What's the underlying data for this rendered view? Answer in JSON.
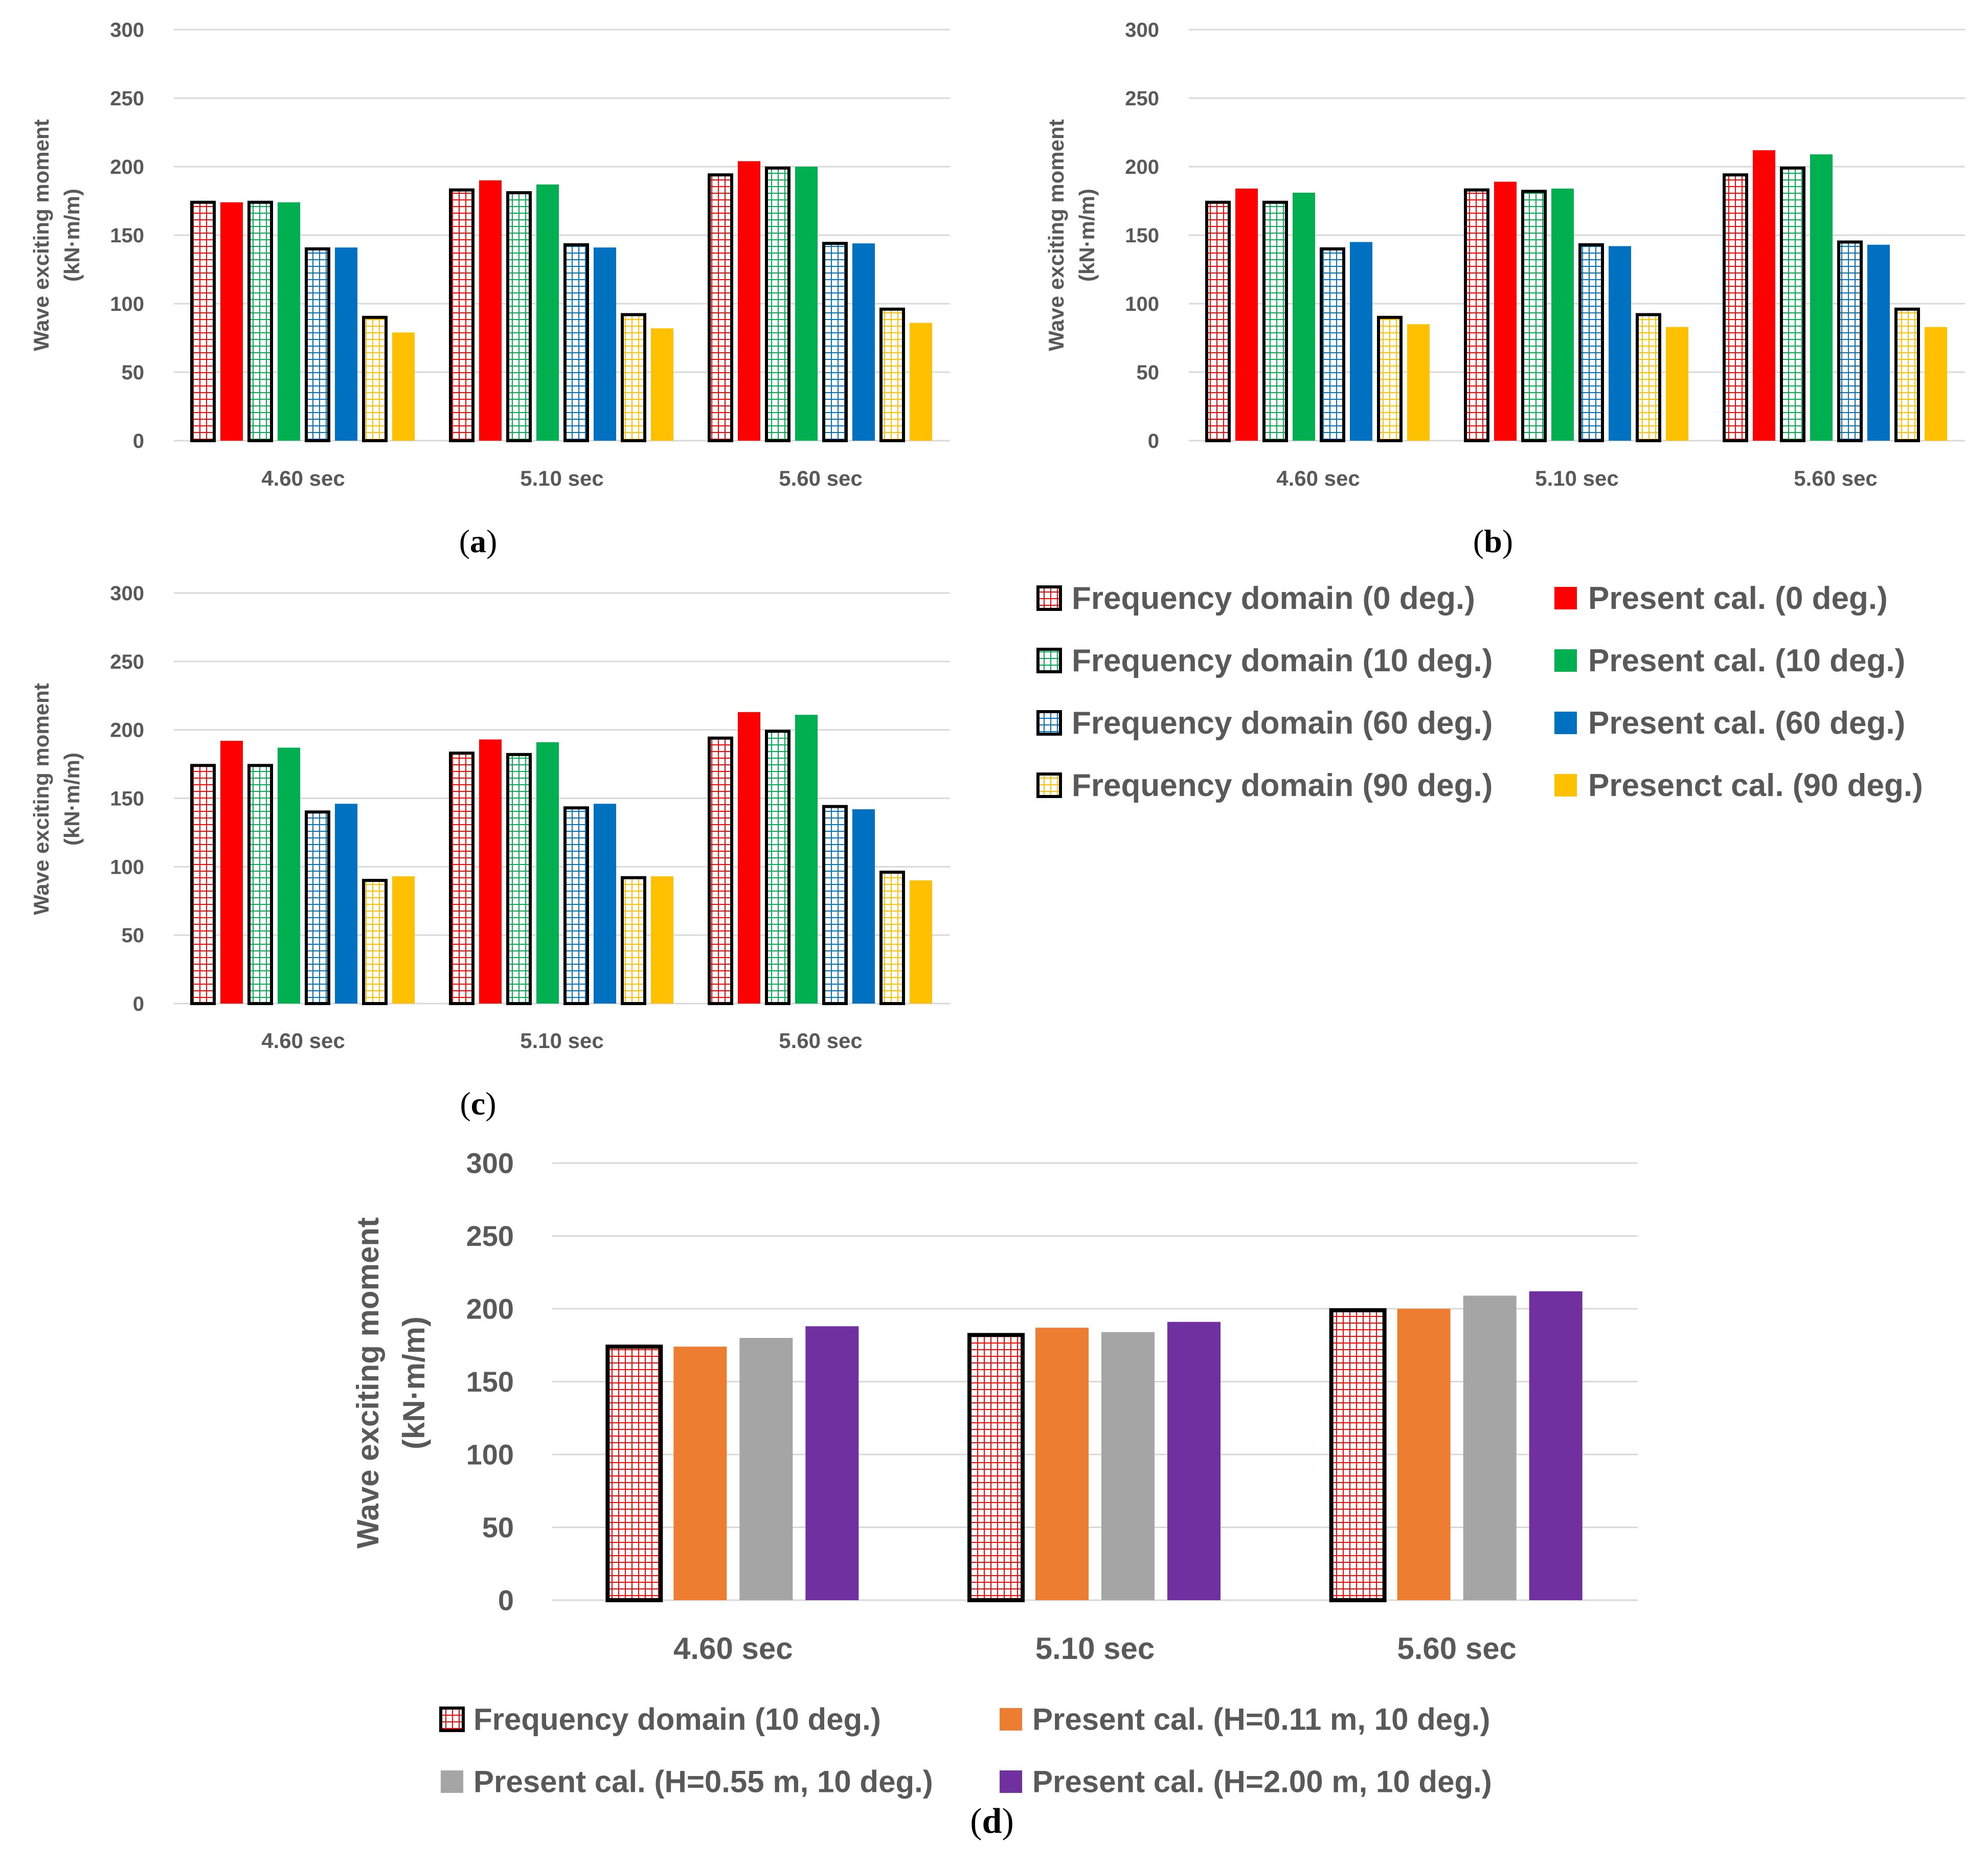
{
  "legend_main": {
    "items": [
      {
        "label": "Frequency domain (0 deg.)",
        "key": "fd0"
      },
      {
        "label": "Present cal. (0 deg.)",
        "key": "pc0"
      },
      {
        "label": "Frequency domain (10 deg.)",
        "key": "fd10"
      },
      {
        "label": "Present cal. (10 deg.)",
        "key": "pc10"
      },
      {
        "label": "Frequency domain (60 deg.)",
        "key": "fd60"
      },
      {
        "label": "Present cal. (60 deg.)",
        "key": "pc60"
      },
      {
        "label": "Frequency domain (90 deg.)",
        "key": "fd90"
      },
      {
        "label": "Presenct cal. (90 deg.)",
        "key": "pc90"
      }
    ]
  },
  "legend_d": {
    "items": [
      {
        "label": "Frequency domain (10 deg.)",
        "key": "fdd"
      },
      {
        "label": "Present cal. (H=0.11 m, 10 deg.)",
        "key": "h011"
      },
      {
        "label": "Present cal. (H=0.55 m, 10 deg.)",
        "key": "h055"
      },
      {
        "label": "Present cal. (H=2.00 m, 10 deg.)",
        "key": "h200"
      }
    ]
  },
  "colors": {
    "fd0": "#ff0000",
    "pc0": "#ff0000",
    "fd10": "#00b050",
    "pc10": "#00b050",
    "fd60": "#0070c0",
    "pc60": "#0070c0",
    "fd90": "#ffc000",
    "pc90": "#ffc000",
    "fdd": "#ff0000",
    "h011": "#ed7d31",
    "h055": "#a5a5a5",
    "h200": "#7030a0"
  },
  "chart_data": [
    {
      "panel": "a",
      "type": "bar",
      "panel_label": "(a)",
      "ylabel_line1": "Wave exciting moment",
      "ylabel_line2": "(kN·m/m)",
      "ylim": [
        0,
        300
      ],
      "yticks": [
        "0",
        "50",
        "100",
        "150",
        "200",
        "250",
        "300"
      ],
      "categories": [
        "4.60 sec",
        "5.10 sec",
        "5.60 sec"
      ],
      "series": [
        {
          "name": "Frequency domain (0 deg.)",
          "key": "fd0",
          "values": [
            174,
            183,
            194
          ]
        },
        {
          "name": "Present cal. (0 deg.)",
          "key": "pc0",
          "values": [
            174,
            190,
            204
          ]
        },
        {
          "name": "Frequency domain (10 deg.)",
          "key": "fd10",
          "values": [
            174,
            181,
            199
          ]
        },
        {
          "name": "Present cal. (10 deg.)",
          "key": "pc10",
          "values": [
            174,
            187,
            200
          ]
        },
        {
          "name": "Frequency domain (60 deg.)",
          "key": "fd60",
          "values": [
            140,
            143,
            144
          ]
        },
        {
          "name": "Present cal. (60 deg.)",
          "key": "pc60",
          "values": [
            141,
            141,
            144
          ]
        },
        {
          "name": "Frequency domain (90 deg.)",
          "key": "fd90",
          "values": [
            90,
            92,
            96
          ]
        },
        {
          "name": "Presenct cal. (90 deg.)",
          "key": "pc90",
          "values": [
            79,
            82,
            86
          ]
        }
      ]
    },
    {
      "panel": "b",
      "type": "bar",
      "panel_label": "(b)",
      "ylabel_line1": "Wave exciting moment",
      "ylabel_line2": "(kN·m/m)",
      "ylim": [
        0,
        300
      ],
      "yticks": [
        "0",
        "50",
        "100",
        "150",
        "200",
        "250",
        "300"
      ],
      "categories": [
        "4.60 sec",
        "5.10 sec",
        "5.60 sec"
      ],
      "series": [
        {
          "name": "Frequency domain (0 deg.)",
          "key": "fd0",
          "values": [
            174,
            183,
            194
          ]
        },
        {
          "name": "Present cal. (0 deg.)",
          "key": "pc0",
          "values": [
            184,
            189,
            212
          ]
        },
        {
          "name": "Frequency domain (10 deg.)",
          "key": "fd10",
          "values": [
            174,
            182,
            199
          ]
        },
        {
          "name": "Present cal. (10 deg.)",
          "key": "pc10",
          "values": [
            181,
            184,
            209
          ]
        },
        {
          "name": "Frequency domain (60 deg.)",
          "key": "fd60",
          "values": [
            140,
            143,
            145
          ]
        },
        {
          "name": "Present cal. (60 deg.)",
          "key": "pc60",
          "values": [
            145,
            142,
            143
          ]
        },
        {
          "name": "Frequency domain (90 deg.)",
          "key": "fd90",
          "values": [
            90,
            92,
            96
          ]
        },
        {
          "name": "Presenct cal. (90 deg.)",
          "key": "pc90",
          "values": [
            85,
            83,
            83
          ]
        }
      ]
    },
    {
      "panel": "c",
      "type": "bar",
      "panel_label": "(c)",
      "ylabel_line1": "Wave exciting moment",
      "ylabel_line2": "(kN·m/m)",
      "ylim": [
        0,
        300
      ],
      "yticks": [
        "0",
        "50",
        "100",
        "150",
        "200",
        "250",
        "300"
      ],
      "categories": [
        "4.60 sec",
        "5.10 sec",
        "5.60 sec"
      ],
      "series": [
        {
          "name": "Frequency domain (0 deg.)",
          "key": "fd0",
          "values": [
            174,
            183,
            194
          ]
        },
        {
          "name": "Present cal. (0 deg.)",
          "key": "pc0",
          "values": [
            192,
            193,
            213
          ]
        },
        {
          "name": "Frequency domain (10 deg.)",
          "key": "fd10",
          "values": [
            174,
            182,
            199
          ]
        },
        {
          "name": "Present cal. (10 deg.)",
          "key": "pc10",
          "values": [
            187,
            191,
            211
          ]
        },
        {
          "name": "Frequency domain (60 deg.)",
          "key": "fd60",
          "values": [
            140,
            143,
            144
          ]
        },
        {
          "name": "Present cal. (60 deg.)",
          "key": "pc60",
          "values": [
            146,
            146,
            142
          ]
        },
        {
          "name": "Frequency domain (90 deg.)",
          "key": "fd90",
          "values": [
            90,
            92,
            96
          ]
        },
        {
          "name": "Presenct cal. (90 deg.)",
          "key": "pc90",
          "values": [
            93,
            93,
            90
          ]
        }
      ]
    },
    {
      "panel": "d",
      "type": "bar",
      "panel_label": "(d)",
      "ylabel_line1": "Wave exciting moment",
      "ylabel_line2": "(kN·m/m)",
      "ylim": [
        0,
        300
      ],
      "yticks": [
        "0",
        "50",
        "100",
        "150",
        "200",
        "250",
        "300"
      ],
      "categories": [
        "4.60 sec",
        "5.10 sec",
        "5.60 sec"
      ],
      "series": [
        {
          "name": "Frequency domain (10 deg.)",
          "key": "fdd",
          "values": [
            174,
            182,
            199
          ]
        },
        {
          "name": "Present cal. (H=0.11 m, 10 deg.)",
          "key": "h011",
          "values": [
            174,
            187,
            200
          ]
        },
        {
          "name": "Present cal. (H=0.55 m, 10 deg.)",
          "key": "h055",
          "values": [
            180,
            184,
            209
          ]
        },
        {
          "name": "Present cal. (H=2.00 m, 10 deg.)",
          "key": "h200",
          "values": [
            188,
            191,
            212
          ]
        }
      ]
    }
  ]
}
